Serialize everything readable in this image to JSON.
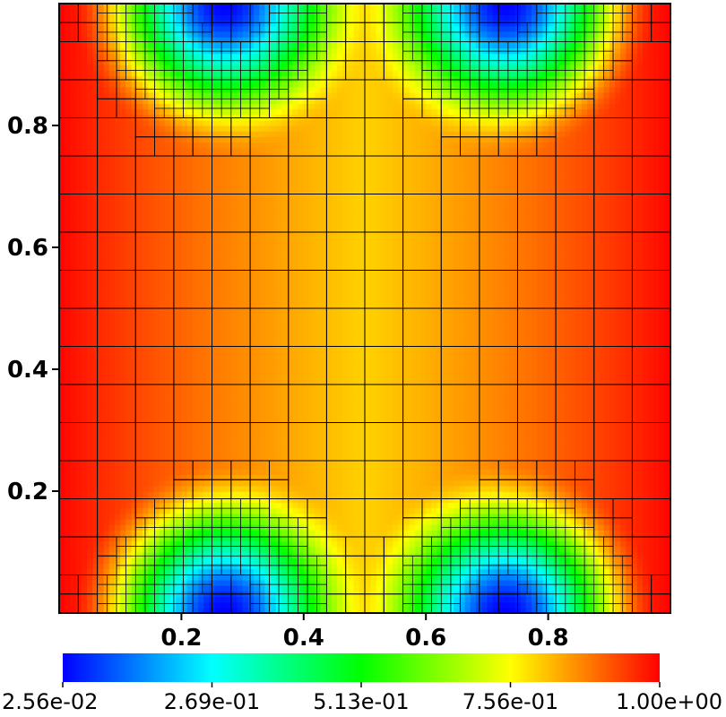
{
  "chart_data": {
    "type": "heatmap",
    "title": "",
    "xlabel": "",
    "ylabel": "",
    "xlim": [
      0,
      1
    ],
    "ylim": [
      0,
      1
    ],
    "x_ticks": [
      "0.2",
      "0.4",
      "0.6",
      "0.8"
    ],
    "y_ticks": [
      "0.2",
      "0.4",
      "0.6",
      "0.8"
    ],
    "grid": "adaptive quadtree mesh overlay",
    "colorbar": {
      "placement": "bottom",
      "range": [
        0.0256,
        1.0
      ],
      "labels": [
        "2.56e-02",
        "2.69e-01",
        "5.13e-01",
        "7.56e-01",
        "1.00e+00"
      ],
      "colors": [
        "#0000ff",
        "#00ffff",
        "#00ff00",
        "#ffff00",
        "#ff0000"
      ]
    },
    "field_features": {
      "low_value_regions": [
        {
          "location": "bottom",
          "x_center": 0.28,
          "min_value": 0.0256
        },
        {
          "location": "bottom",
          "x_center": 0.72,
          "min_value": 0.0256
        },
        {
          "location": "top",
          "x_center": 0.28,
          "min_value": 0.0256
        },
        {
          "location": "top",
          "x_center": 0.72,
          "min_value": 0.0256
        }
      ],
      "boundary_value": 1.0,
      "center_value": 0.8
    }
  }
}
